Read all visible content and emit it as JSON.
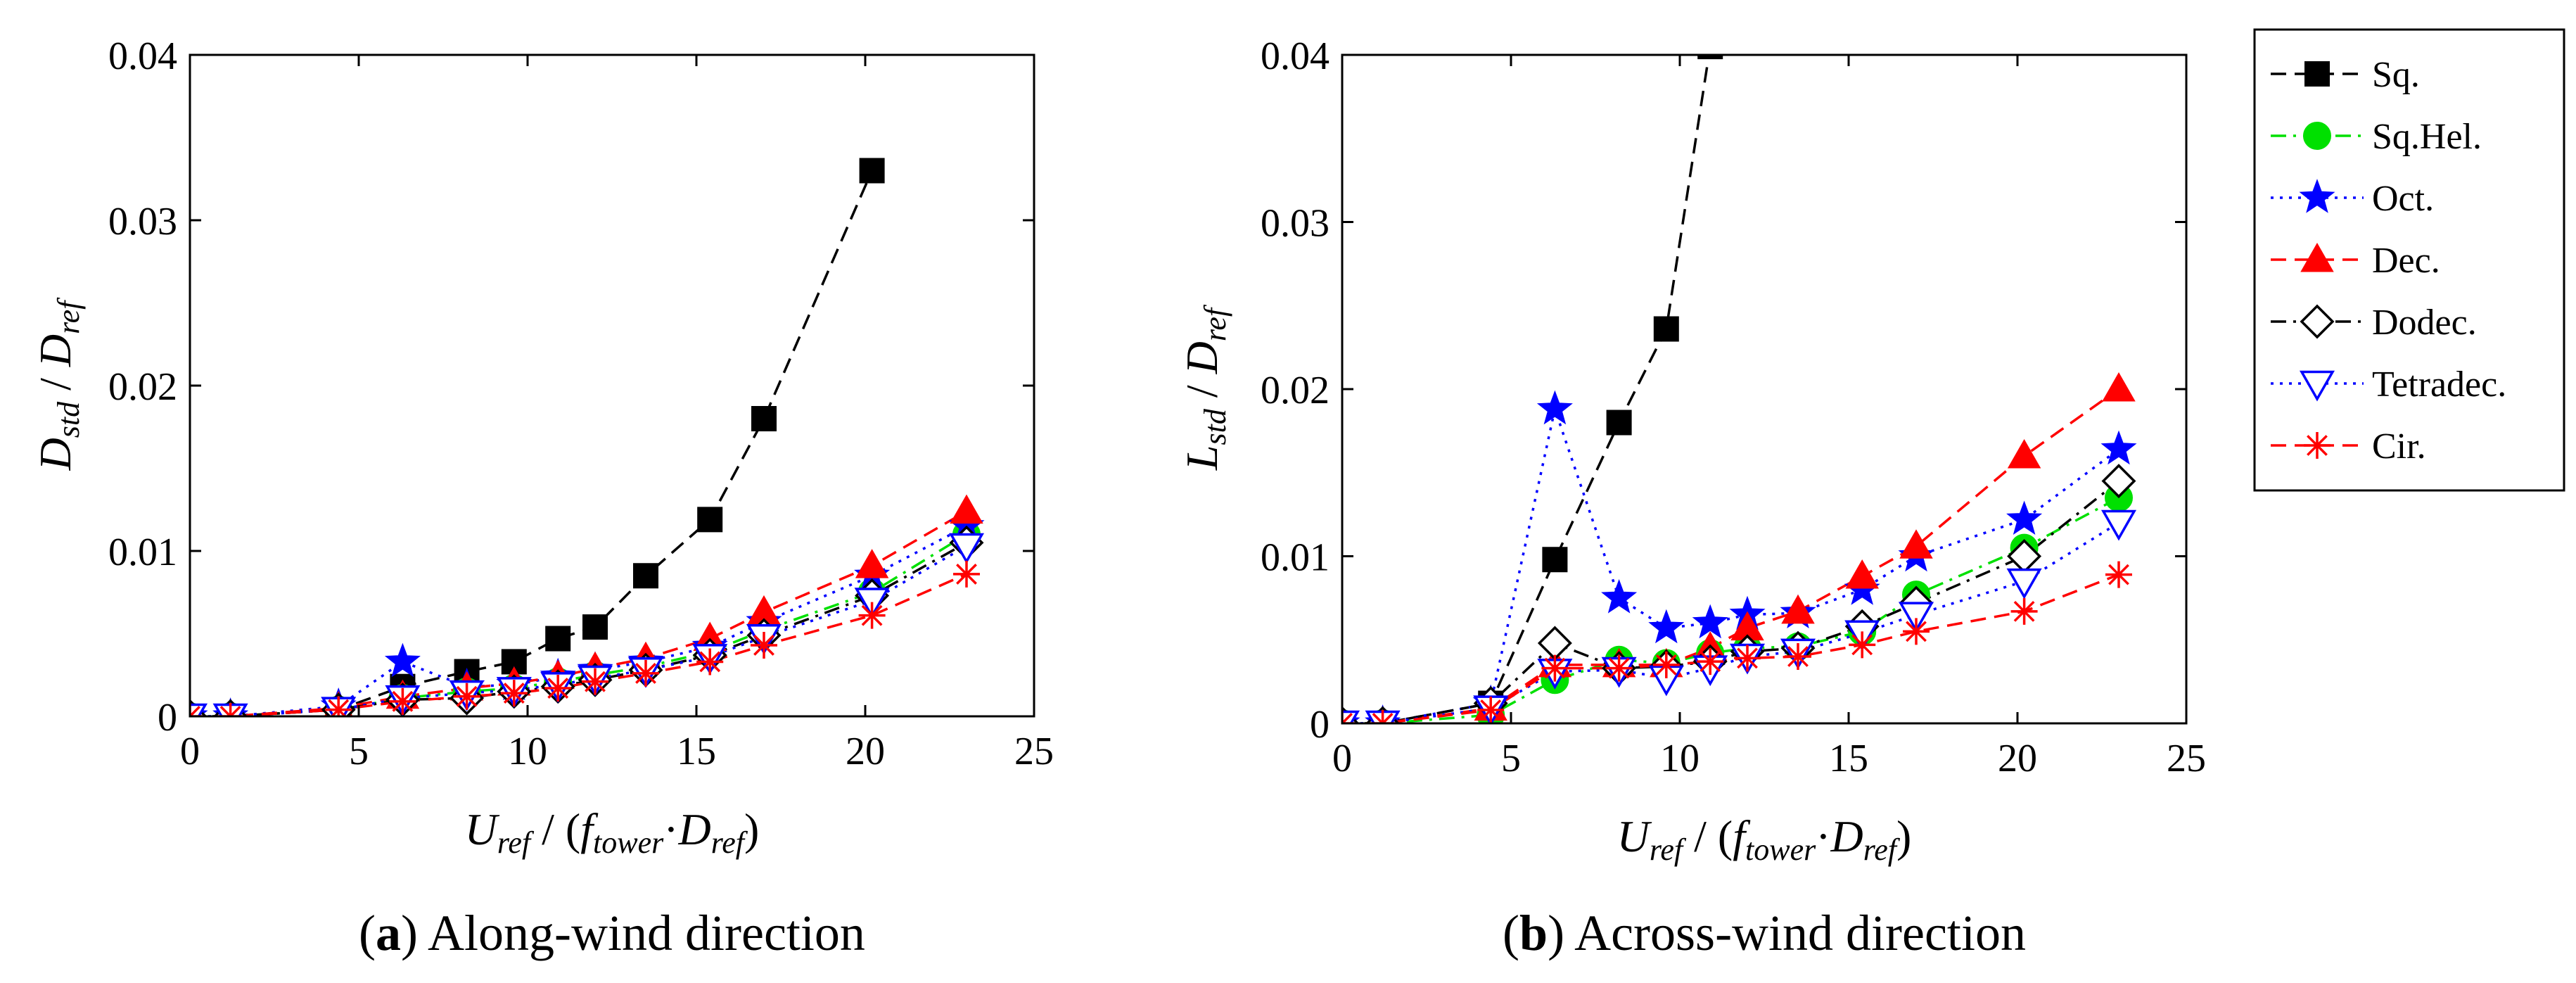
{
  "legend": [
    "Sq.",
    "Sq.Hel.",
    "Oct.",
    "Dec.",
    "Dodec.",
    "Tetradec.",
    "Cir."
  ],
  "series_styles": {
    "Sq.": {
      "color": "#000000",
      "dash": "long",
      "marker": "square",
      "filled": true
    },
    "Sq.Hel.": {
      "color": "#00e000",
      "dash": "dashdot",
      "marker": "circle",
      "filled": true
    },
    "Oct.": {
      "color": "#0000ff",
      "dash": "dot",
      "marker": "star",
      "filled": true
    },
    "Dec.": {
      "color": "#ff0000",
      "dash": "long",
      "marker": "triangle-up",
      "filled": true
    },
    "Dodec.": {
      "color": "#000000",
      "dash": "dashdot",
      "marker": "diamond",
      "filled": false
    },
    "Tetradec.": {
      "color": "#0000ff",
      "dash": "dot",
      "marker": "triangle-down",
      "filled": false
    },
    "Cir.": {
      "color": "#ff0000",
      "dash": "long",
      "marker": "asterisk",
      "filled": false
    }
  },
  "chart_data": [
    {
      "type": "line",
      "caption_letter": "a",
      "caption_text": "Along-wind direction",
      "ylabel_main": "D",
      "ylabel_sub": "std",
      "ylabel_sep": " / ",
      "ylabel_main2": "D",
      "ylabel_sub2": "ref",
      "xlabel_parts": [
        "U",
        "ref",
        " / (",
        "f",
        "tower",
        "·",
        "D",
        "ref",
        ")"
      ],
      "xlim": [
        0,
        25
      ],
      "ylim": [
        0,
        0.04
      ],
      "xticks": [
        0,
        5,
        10,
        15,
        20,
        25
      ],
      "yticks": [
        0,
        0.01,
        0.02,
        0.03,
        0.04
      ],
      "xtick_labels": [
        "0",
        "5",
        "10",
        "15",
        "20",
        "25"
      ],
      "ytick_labels": [
        "0",
        "0.01",
        "0.02",
        "0.03",
        "0.04"
      ],
      "series": [
        {
          "name": "Sq.",
          "x": [
            0,
            1.2,
            4.4,
            6.3,
            8.2,
            9.6,
            10.9,
            12.0,
            13.5,
            15.4,
            17.0,
            20.2
          ],
          "y": [
            0,
            0,
            0.0004,
            0.0018,
            0.0027,
            0.0033,
            0.0047,
            0.0054,
            0.0085,
            0.0119,
            0.018,
            0.033
          ]
        },
        {
          "name": "Sq.Hel.",
          "x": [
            0,
            1.2,
            4.4,
            6.3,
            8.2,
            9.6,
            10.9,
            12.0,
            13.5,
            15.4,
            17.0,
            20.2,
            23.0
          ],
          "y": [
            0,
            0,
            0.0004,
            0.0011,
            0.0015,
            0.0017,
            0.0021,
            0.0025,
            0.003,
            0.0039,
            0.0052,
            0.0075,
            0.011
          ]
        },
        {
          "name": "Oct.",
          "x": [
            0,
            1.2,
            4.4,
            6.3,
            8.2,
            9.6,
            10.9,
            12.0,
            13.5,
            15.4,
            17.0,
            20.2,
            23.0
          ],
          "y": [
            0,
            0,
            0.0006,
            0.0033,
            0.0018,
            0.0019,
            0.0024,
            0.0028,
            0.0033,
            0.0042,
            0.0057,
            0.0085,
            0.0115
          ]
        },
        {
          "name": "Dec.",
          "x": [
            0,
            1.2,
            4.4,
            6.3,
            8.2,
            9.6,
            10.9,
            12.0,
            13.5,
            15.4,
            17.0,
            20.2,
            23.0
          ],
          "y": [
            0,
            0,
            0.0005,
            0.0012,
            0.0017,
            0.002,
            0.0024,
            0.0029,
            0.0035,
            0.0047,
            0.0063,
            0.0091,
            0.0124
          ]
        },
        {
          "name": "Dodec.",
          "x": [
            0,
            1.2,
            4.4,
            6.3,
            8.2,
            9.6,
            10.9,
            12.0,
            13.5,
            15.4,
            17.0,
            20.2,
            23.0
          ],
          "y": [
            0,
            0,
            0.0004,
            0.001,
            0.0011,
            0.0015,
            0.0018,
            0.0022,
            0.0028,
            0.0037,
            0.0049,
            0.0073,
            0.0105
          ]
        },
        {
          "name": "Tetradec.",
          "x": [
            0,
            1.2,
            4.4,
            6.3,
            8.2,
            9.6,
            10.9,
            12.0,
            13.5,
            15.4,
            17.0,
            20.2,
            23.0
          ],
          "y": [
            0,
            0,
            0.0004,
            0.0011,
            0.0014,
            0.0016,
            0.0019,
            0.0023,
            0.0028,
            0.0036,
            0.0048,
            0.007,
            0.0103
          ]
        },
        {
          "name": "Cir.",
          "x": [
            0,
            1.2,
            4.4,
            6.3,
            8.2,
            9.6,
            10.9,
            12.0,
            13.5,
            15.4,
            17.0,
            20.2,
            23.0
          ],
          "y": [
            0,
            0,
            0.0004,
            0.0009,
            0.0012,
            0.0014,
            0.0017,
            0.0021,
            0.0026,
            0.0033,
            0.0043,
            0.0061,
            0.0086
          ]
        }
      ]
    },
    {
      "type": "line",
      "caption_letter": "b",
      "caption_text": "Across-wind direction",
      "ylabel_main": "L",
      "ylabel_sub": "std",
      "ylabel_sep": " / ",
      "ylabel_main2": "D",
      "ylabel_sub2": "ref",
      "xlabel_parts": [
        "U",
        "ref",
        " / (",
        "f",
        "tower",
        "·",
        "D",
        "ref",
        ")"
      ],
      "xlim": [
        0,
        25
      ],
      "ylim": [
        0,
        0.04
      ],
      "xticks": [
        0,
        5,
        10,
        15,
        20,
        25
      ],
      "yticks": [
        0,
        0.01,
        0.02,
        0.03,
        0.04
      ],
      "xtick_labels": [
        "0",
        "5",
        "10",
        "15",
        "20",
        "25"
      ],
      "ytick_labels": [
        "0",
        "0.01",
        "0.02",
        "0.03",
        "0.04"
      ],
      "series": [
        {
          "name": "Sq.",
          "x": [
            0,
            1.2,
            4.4,
            6.3,
            8.2,
            9.6,
            10.9
          ],
          "y": [
            0,
            0,
            0.0012,
            0.0098,
            0.018,
            0.0236,
            0.0405
          ]
        },
        {
          "name": "Sq.Hel.",
          "x": [
            0,
            1.2,
            4.4,
            6.3,
            8.2,
            9.6,
            10.9,
            12.0,
            13.5,
            15.4,
            17.0,
            20.2,
            23.0
          ],
          "y": [
            0,
            0,
            0.0005,
            0.0026,
            0.0038,
            0.0036,
            0.0042,
            0.0045,
            0.0046,
            0.0055,
            0.0077,
            0.0105,
            0.0135
          ]
        },
        {
          "name": "Oct.",
          "x": [
            0,
            1.2,
            4.4,
            6.3,
            8.2,
            9.6,
            10.9,
            12.0,
            13.5,
            15.4,
            17.0,
            20.2,
            23.0
          ],
          "y": [
            0,
            0,
            0.0012,
            0.0188,
            0.0075,
            0.0057,
            0.006,
            0.0065,
            0.0066,
            0.008,
            0.01,
            0.0122,
            0.0164
          ]
        },
        {
          "name": "Dec.",
          "x": [
            0,
            1.2,
            4.4,
            6.3,
            8.2,
            9.6,
            10.9,
            12.0,
            13.5,
            15.4,
            17.0,
            20.2,
            23.0
          ],
          "y": [
            0,
            0,
            0.0009,
            0.0035,
            0.0035,
            0.0035,
            0.0045,
            0.0057,
            0.0067,
            0.0088,
            0.0106,
            0.016,
            0.02
          ]
        },
        {
          "name": "Dodec.",
          "x": [
            0,
            1.2,
            4.4,
            6.3,
            8.2,
            9.6,
            10.9,
            12.0,
            13.5,
            15.4,
            17.0,
            20.2,
            23.0
          ],
          "y": [
            0,
            0,
            0.0012,
            0.0048,
            0.0033,
            0.0034,
            0.0037,
            0.0043,
            0.0045,
            0.0058,
            0.0072,
            0.01,
            0.0145
          ]
        },
        {
          "name": "Tetradec.",
          "x": [
            0,
            1.2,
            4.4,
            6.3,
            8.2,
            9.6,
            10.9,
            12.0,
            13.5,
            15.4,
            17.0,
            20.2,
            23.0
          ],
          "y": [
            0,
            0,
            0.0009,
            0.0031,
            0.0032,
            0.0027,
            0.0033,
            0.004,
            0.0043,
            0.0054,
            0.0065,
            0.0085,
            0.012
          ]
        },
        {
          "name": "Cir.",
          "x": [
            0,
            1.2,
            4.4,
            6.3,
            8.2,
            9.6,
            10.9,
            12.0,
            13.5,
            15.4,
            17.0,
            20.2,
            23.0
          ],
          "y": [
            0,
            0,
            0.0008,
            0.0033,
            0.0033,
            0.0035,
            0.0037,
            0.0039,
            0.004,
            0.0047,
            0.0055,
            0.0067,
            0.0089
          ]
        }
      ]
    }
  ]
}
